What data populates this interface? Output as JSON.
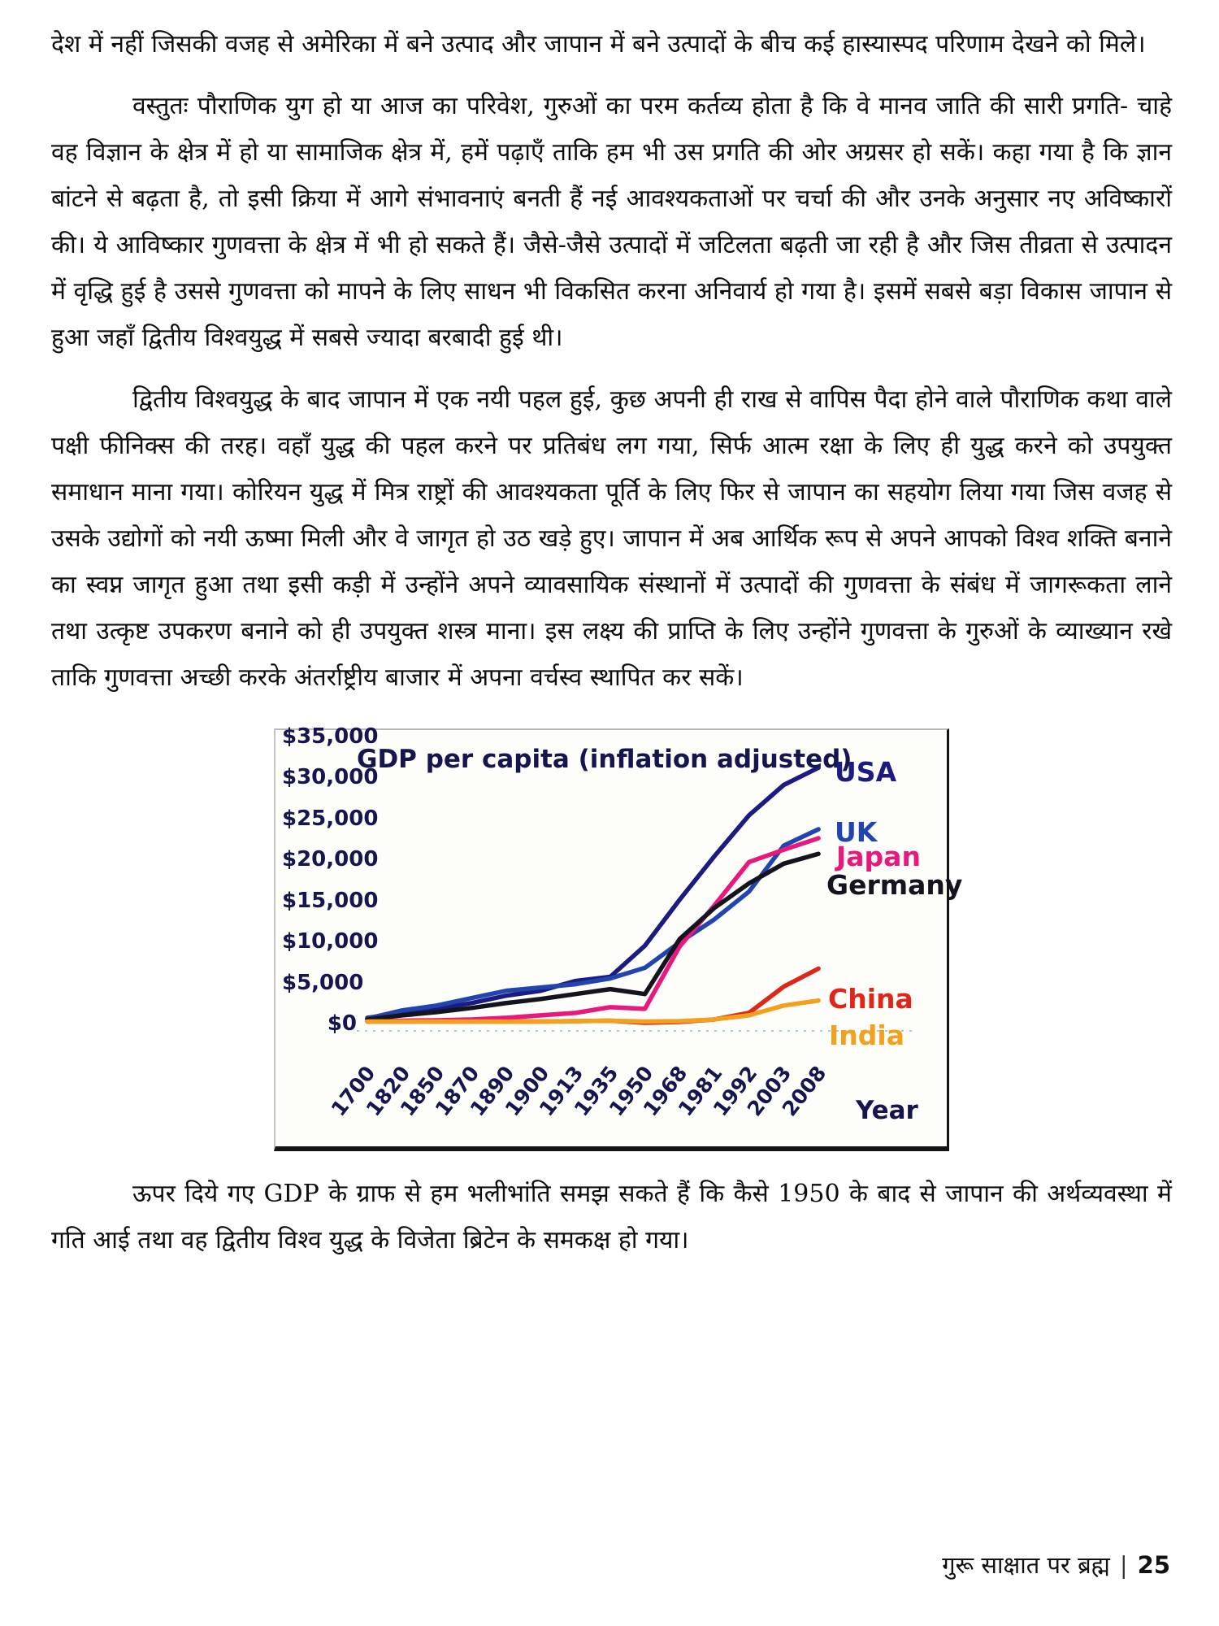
{
  "document": {
    "paragraphs": [
      {
        "text": "देश में नहीं जिसकी वजह से अमेरिका में बने उत्पाद और जापान में बने उत्पादों के बीच कई हास्यास्पद परिणाम देखने को मिले।"
      },
      {
        "text": "वस्तुतः पौराणिक युग हो या आज का परिवेश, गुरुओं का परम कर्तव्य होता है कि वे मानव जाति की सारी प्रगति- चाहे वह विज्ञान के क्षेत्र में हो या सामाजिक क्षेत्र में, हमें पढ़ाएँ ताकि हम भी उस प्रगति की ओर अग्रसर हो सकें। कहा गया है कि ज्ञान बांटने से बढ़ता है, तो इसी क्रिया में आगे संभावनाएं बनती हैं नई आवश्यकताओं पर चर्चा की और उनके अनुसार नए अविष्कारों की। ये आविष्कार गुणवत्ता के क्षेत्र में भी हो सकते हैं। जैसे-जैसे उत्पादों में जटिलता बढ़ती जा रही है और जिस तीव्रता से उत्पादन में वृद्धि हुई है उससे गुणवत्ता को मापने के लिए साधन भी विकसित करना अनिवार्य हो गया है। इसमें सबसे बड़ा विकास जापान से हुआ जहाँ द्वितीय विश्वयुद्ध में सबसे ज्यादा बरबादी हुई थी।"
      },
      {
        "text": "द्वितीय विश्वयुद्ध के बाद जापान में एक नयी पहल हुई, कुछ अपनी ही राख से वापिस पैदा होने वाले पौराणिक कथा वाले पक्षी फीनिक्स की तरह। वहाँ युद्ध की पहल करने पर प्रतिबंध लग गया, सिर्फ आत्म रक्षा के लिए ही युद्ध करने को उपयुक्त समाधान माना गया। कोरियन युद्ध में मित्र राष्ट्रों की आवश्यकता पूर्ति के लिए फिर से जापान का सहयोग लिया गया जिस वजह से उसके उद्योगों को नयी ऊष्मा मिली और वे जागृत हो उठ खड़े हुए। जापान में अब आर्थिक रूप से अपने आपको विश्व शक्ति बनाने का स्वप्न जागृत हुआ तथा इसी कड़ी में उन्होंने अपने व्यावसायिक संस्थानों में उत्पादों की गुणवत्ता के संबंध में जागरूकता लाने तथा उत्कृष्ट उपकरण बनाने को ही उपयुक्त शस्त्र माना। इस लक्ष्य की प्राप्ति के लिए उन्होंने गुणवत्ता के गुरुओं के व्याख्यान रखे ताकि गुणवत्ता अच्छी करके अंतर्राष्ट्रीय बाजार में अपना वर्चस्व स्थापित कर सकें।"
      },
      {
        "text": "ऊपर दिये गए GDP के ग्राफ से हम भलीभांति समझ सकते हैं कि कैसे 1950 के बाद से जापान की अर्थव्यवस्था में गति आई तथा वह द्वितीय विश्व युद्ध के विजेता ब्रिटेन के समकक्ष हो गया।"
      }
    ],
    "footer": {
      "book_title": "गुरू साक्षात पर ब्रह्म",
      "separator": "|",
      "page_number": "25"
    }
  },
  "chart_data": {
    "type": "line",
    "title": "GDP per capita (inflation adjusted)",
    "xlabel": "Year",
    "ylabel": "",
    "ylim": [
      0,
      35000
    ],
    "grid": false,
    "legend_position": "right of line ends",
    "axis_text_color": "#16164e",
    "y_ticks": [
      "$35,000",
      "$30,000",
      "$25,000",
      "$20,000",
      "$15,000",
      "$10,000",
      "$5,000",
      "$0"
    ],
    "y_tick_values": [
      35000,
      30000,
      25000,
      20000,
      15000,
      10000,
      5000,
      0
    ],
    "categories": [
      "1700",
      "1820",
      "1850",
      "1870",
      "1890",
      "1900",
      "1913",
      "1935",
      "1950",
      "1968",
      "1981",
      "1992",
      "2003",
      "2008"
    ],
    "series": [
      {
        "name": "USA",
        "color": "#1b1b82",
        "values": [
          800,
          1400,
          1900,
          2600,
          3500,
          4100,
          5300,
          5800,
          9600,
          15200,
          20500,
          25500,
          29200,
          31300
        ]
      },
      {
        "name": "UK",
        "color": "#2244ae",
        "values": [
          700,
          1700,
          2300,
          3200,
          4100,
          4500,
          4900,
          5600,
          6900,
          10000,
          12800,
          16200,
          21800,
          23800
        ]
      },
      {
        "name": "Japan",
        "color": "#e8187d",
        "values": [
          350,
          450,
          500,
          600,
          800,
          1100,
          1400,
          2100,
          1900,
          9500,
          14500,
          19800,
          21300,
          22700
        ]
      },
      {
        "name": "Germany",
        "color": "#14141e",
        "values": [
          600,
          1100,
          1500,
          2000,
          2600,
          3100,
          3700,
          4300,
          3700,
          10400,
          14200,
          17200,
          19600,
          20800
        ]
      },
      {
        "name": "China",
        "color": "#e02519",
        "values": [
          350,
          350,
          350,
          350,
          350,
          350,
          400,
          450,
          200,
          300,
          600,
          1400,
          4600,
          6800
        ]
      },
      {
        "name": "India",
        "color": "#f2a01e",
        "values": [
          350,
          350,
          350,
          350,
          350,
          350,
          400,
          450,
          350,
          400,
          600,
          1100,
          2300,
          2900
        ]
      }
    ]
  }
}
